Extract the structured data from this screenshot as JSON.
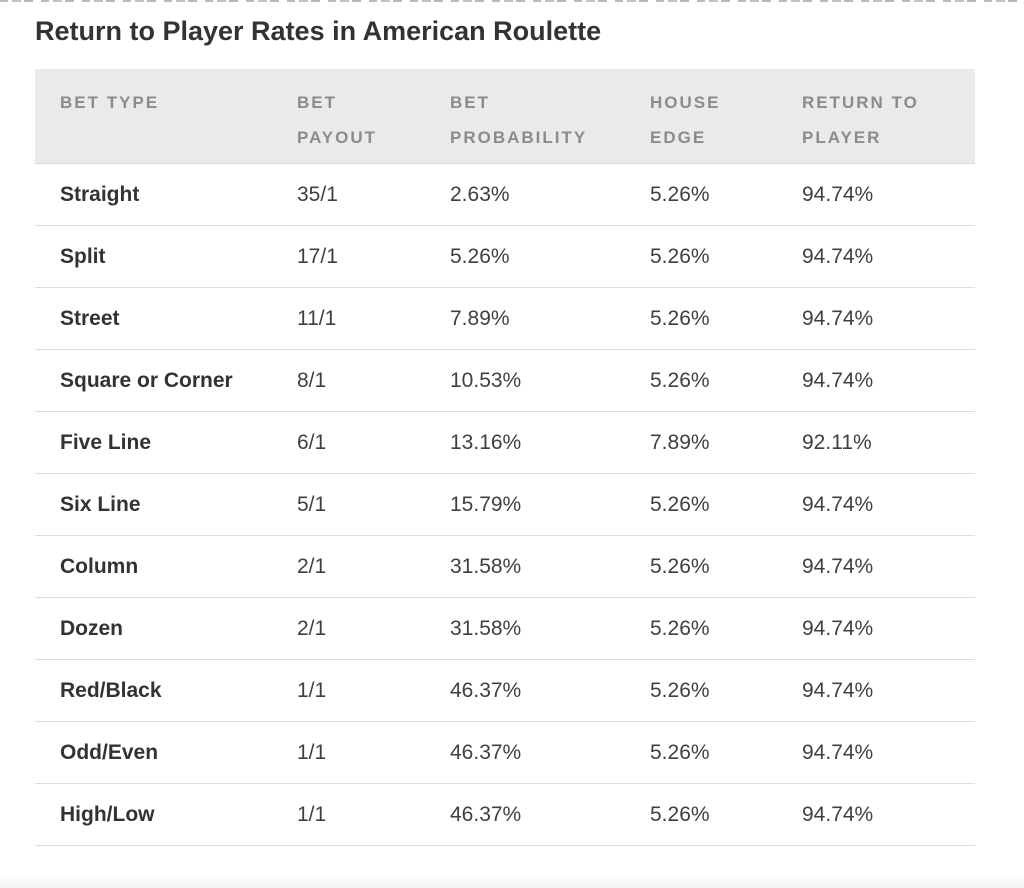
{
  "page": {
    "title": "Return to Player Rates in American Roulette"
  },
  "colors": {
    "title_text": "#333333",
    "header_background": "#eaeaea",
    "header_text": "#8b8b8b",
    "body_text": "#404040",
    "row_divider": "#dcdcdc"
  },
  "table": {
    "headers": [
      {
        "label": "BET TYPE",
        "line1": "BET TYPE",
        "line2": ""
      },
      {
        "label": "BET PAYOUT",
        "line1": "BET",
        "line2": "PAYOUT"
      },
      {
        "label": "BET PROBABILITY",
        "line1": "BET",
        "line2": "PROBABILITY"
      },
      {
        "label": "HOUSE EDGE",
        "line1": "HOUSE",
        "line2": "EDGE"
      },
      {
        "label": "RETURN TO PLAYER",
        "line1": "RETURN TO",
        "line2": "PLAYER"
      }
    ],
    "rows": [
      {
        "bet_type": "Straight",
        "bet_payout": "35/1",
        "bet_probability": "2.63%",
        "house_edge": "5.26%",
        "return_to_player": "94.74%"
      },
      {
        "bet_type": "Split",
        "bet_payout": "17/1",
        "bet_probability": "5.26%",
        "house_edge": "5.26%",
        "return_to_player": "94.74%"
      },
      {
        "bet_type": "Street",
        "bet_payout": "11/1",
        "bet_probability": "7.89%",
        "house_edge": "5.26%",
        "return_to_player": "94.74%"
      },
      {
        "bet_type": "Square or Corner",
        "bet_payout": "8/1",
        "bet_probability": "10.53%",
        "house_edge": "5.26%",
        "return_to_player": "94.74%"
      },
      {
        "bet_type": "Five Line",
        "bet_payout": "6/1",
        "bet_probability": "13.16%",
        "house_edge": "7.89%",
        "return_to_player": "92.11%"
      },
      {
        "bet_type": "Six Line",
        "bet_payout": "5/1",
        "bet_probability": "15.79%",
        "house_edge": "5.26%",
        "return_to_player": "94.74%"
      },
      {
        "bet_type": "Column",
        "bet_payout": "2/1",
        "bet_probability": "31.58%",
        "house_edge": "5.26%",
        "return_to_player": "94.74%"
      },
      {
        "bet_type": "Dozen",
        "bet_payout": "2/1",
        "bet_probability": "31.58%",
        "house_edge": "5.26%",
        "return_to_player": "94.74%"
      },
      {
        "bet_type": "Red/Black",
        "bet_payout": "1/1",
        "bet_probability": "46.37%",
        "house_edge": "5.26%",
        "return_to_player": "94.74%"
      },
      {
        "bet_type": "Odd/Even",
        "bet_payout": "1/1",
        "bet_probability": "46.37%",
        "house_edge": "5.26%",
        "return_to_player": "94.74%"
      },
      {
        "bet_type": "High/Low",
        "bet_payout": "1/1",
        "bet_probability": "46.37%",
        "house_edge": "5.26%",
        "return_to_player": "94.74%"
      }
    ]
  }
}
